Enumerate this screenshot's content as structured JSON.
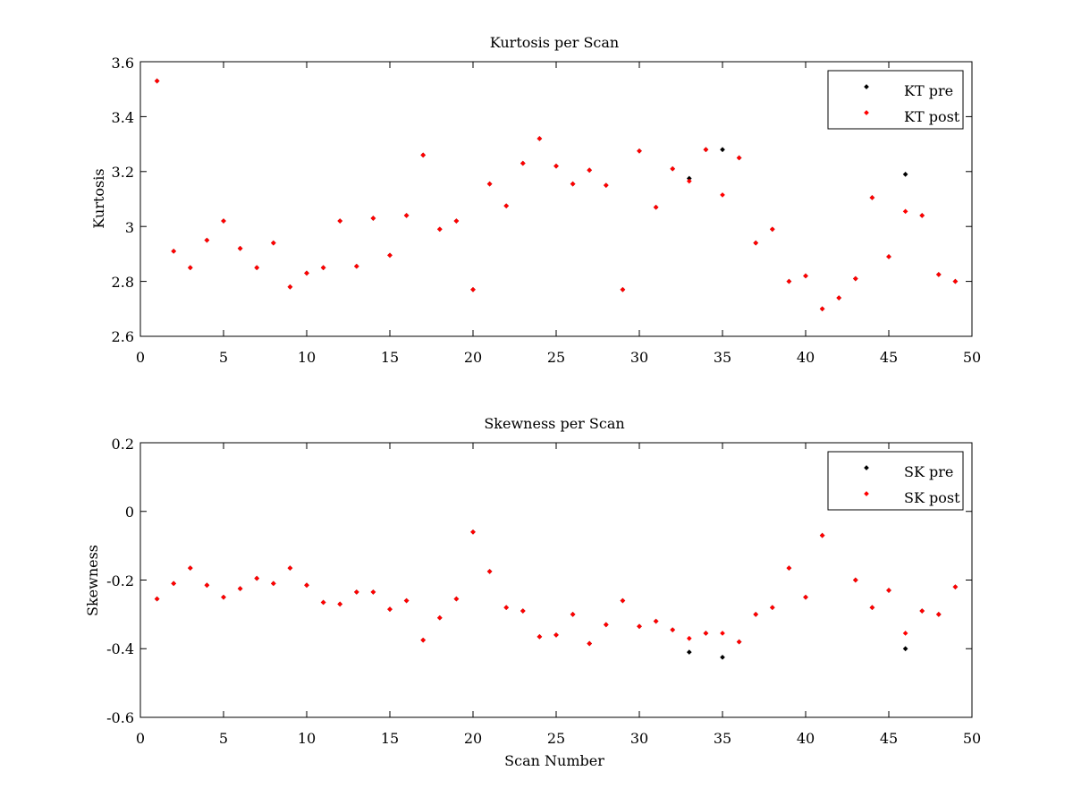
{
  "chart_data": [
    {
      "type": "scatter",
      "title": "Kurtosis per Scan",
      "xlabel": "",
      "ylabel": "Kurtosis",
      "xlim": [
        0,
        50
      ],
      "ylim": [
        2.6,
        3.6
      ],
      "xticks": [
        "0",
        "5",
        "10",
        "15",
        "20",
        "25",
        "30",
        "35",
        "40",
        "45",
        "50"
      ],
      "yticks": [
        "2.6",
        "2.8",
        "3",
        "3.2",
        "3.4",
        "3.6"
      ],
      "legend_position": "top-right",
      "series": [
        {
          "name": "KT pre",
          "color": "#000000",
          "points": [
            [
              1,
              3.53
            ],
            [
              2,
              2.91
            ],
            [
              3,
              2.85
            ],
            [
              4,
              2.95
            ],
            [
              5,
              3.02
            ],
            [
              6,
              2.92
            ],
            [
              7,
              2.85
            ],
            [
              8,
              2.94
            ],
            [
              9,
              2.78
            ],
            [
              10,
              2.83
            ],
            [
              11,
              2.85
            ],
            [
              12,
              3.02
            ],
            [
              13,
              2.855
            ],
            [
              14,
              3.03
            ],
            [
              15,
              2.895
            ],
            [
              16,
              3.04
            ],
            [
              17,
              3.26
            ],
            [
              18,
              2.99
            ],
            [
              19,
              3.02
            ],
            [
              20,
              2.77
            ],
            [
              21,
              3.155
            ],
            [
              22,
              3.075
            ],
            [
              23,
              3.23
            ],
            [
              24,
              3.32
            ],
            [
              25,
              3.22
            ],
            [
              26,
              3.155
            ],
            [
              27,
              3.205
            ],
            [
              28,
              3.15
            ],
            [
              29,
              2.77
            ],
            [
              30,
              3.275
            ],
            [
              31,
              3.07
            ],
            [
              32,
              3.21
            ],
            [
              33,
              3.175
            ],
            [
              34,
              3.28
            ],
            [
              35,
              3.28
            ],
            [
              36,
              3.25
            ],
            [
              37,
              2.94
            ],
            [
              38,
              2.99
            ],
            [
              39,
              2.8
            ],
            [
              40,
              2.82
            ],
            [
              41,
              2.7
            ],
            [
              42,
              2.74
            ],
            [
              43,
              2.81
            ],
            [
              44,
              3.105
            ],
            [
              45,
              2.89
            ],
            [
              46,
              3.19
            ],
            [
              47,
              3.04
            ],
            [
              48,
              2.825
            ],
            [
              49,
              2.8
            ]
          ]
        },
        {
          "name": "KT post",
          "color": "#ff0000",
          "points": [
            [
              1,
              3.53
            ],
            [
              2,
              2.91
            ],
            [
              3,
              2.85
            ],
            [
              4,
              2.95
            ],
            [
              5,
              3.02
            ],
            [
              6,
              2.92
            ],
            [
              7,
              2.85
            ],
            [
              8,
              2.94
            ],
            [
              9,
              2.78
            ],
            [
              10,
              2.83
            ],
            [
              11,
              2.85
            ],
            [
              12,
              3.02
            ],
            [
              13,
              2.855
            ],
            [
              14,
              3.03
            ],
            [
              15,
              2.895
            ],
            [
              16,
              3.04
            ],
            [
              17,
              3.26
            ],
            [
              18,
              2.99
            ],
            [
              19,
              3.02
            ],
            [
              20,
              2.77
            ],
            [
              21,
              3.155
            ],
            [
              22,
              3.075
            ],
            [
              23,
              3.23
            ],
            [
              24,
              3.32
            ],
            [
              25,
              3.22
            ],
            [
              26,
              3.155
            ],
            [
              27,
              3.205
            ],
            [
              28,
              3.15
            ],
            [
              29,
              2.77
            ],
            [
              30,
              3.275
            ],
            [
              31,
              3.07
            ],
            [
              32,
              3.21
            ],
            [
              33,
              3.165
            ],
            [
              34,
              3.28
            ],
            [
              35,
              3.115
            ],
            [
              36,
              3.25
            ],
            [
              37,
              2.94
            ],
            [
              38,
              2.99
            ],
            [
              39,
              2.8
            ],
            [
              40,
              2.82
            ],
            [
              41,
              2.7
            ],
            [
              42,
              2.74
            ],
            [
              43,
              2.81
            ],
            [
              44,
              3.105
            ],
            [
              45,
              2.89
            ],
            [
              46,
              3.055
            ],
            [
              47,
              3.04
            ],
            [
              48,
              2.825
            ],
            [
              49,
              2.8
            ]
          ]
        }
      ]
    },
    {
      "type": "scatter",
      "title": "Skewness per Scan",
      "xlabel": "Scan Number",
      "ylabel": "Skewness",
      "xlim": [
        0,
        50
      ],
      "ylim": [
        -0.6,
        0.2
      ],
      "xticks": [
        "0",
        "5",
        "10",
        "15",
        "20",
        "25",
        "30",
        "35",
        "40",
        "45",
        "50"
      ],
      "yticks": [
        "-0.6",
        "-0.4",
        "-0.2",
        "0",
        "0.2"
      ],
      "legend_position": "top-right",
      "series": [
        {
          "name": "SK pre",
          "color": "#000000",
          "points": [
            [
              1,
              -0.255
            ],
            [
              2,
              -0.21
            ],
            [
              3,
              -0.165
            ],
            [
              4,
              -0.215
            ],
            [
              5,
              -0.25
            ],
            [
              6,
              -0.225
            ],
            [
              7,
              -0.195
            ],
            [
              8,
              -0.21
            ],
            [
              9,
              -0.165
            ],
            [
              10,
              -0.215
            ],
            [
              11,
              -0.265
            ],
            [
              12,
              -0.27
            ],
            [
              13,
              -0.235
            ],
            [
              14,
              -0.235
            ],
            [
              15,
              -0.285
            ],
            [
              16,
              -0.26
            ],
            [
              17,
              -0.375
            ],
            [
              18,
              -0.31
            ],
            [
              19,
              -0.255
            ],
            [
              20,
              -0.06
            ],
            [
              21,
              -0.175
            ],
            [
              22,
              -0.28
            ],
            [
              23,
              -0.29
            ],
            [
              24,
              -0.365
            ],
            [
              25,
              -0.36
            ],
            [
              26,
              -0.3
            ],
            [
              27,
              -0.385
            ],
            [
              28,
              -0.33
            ],
            [
              29,
              -0.26
            ],
            [
              30,
              -0.335
            ],
            [
              31,
              -0.32
            ],
            [
              32,
              -0.345
            ],
            [
              33,
              -0.41
            ],
            [
              34,
              -0.355
            ],
            [
              35,
              -0.425
            ],
            [
              36,
              -0.38
            ],
            [
              37,
              -0.3
            ],
            [
              38,
              -0.28
            ],
            [
              39,
              -0.165
            ],
            [
              40,
              -0.25
            ],
            [
              41,
              -0.07
            ],
            [
              43,
              -0.2
            ],
            [
              44,
              -0.28
            ],
            [
              45,
              -0.23
            ],
            [
              46,
              -0.4
            ],
            [
              47,
              -0.29
            ],
            [
              48,
              -0.3
            ],
            [
              49,
              -0.22
            ]
          ]
        },
        {
          "name": "SK post",
          "color": "#ff0000",
          "points": [
            [
              1,
              -0.255
            ],
            [
              2,
              -0.21
            ],
            [
              3,
              -0.165
            ],
            [
              4,
              -0.215
            ],
            [
              5,
              -0.25
            ],
            [
              6,
              -0.225
            ],
            [
              7,
              -0.195
            ],
            [
              8,
              -0.21
            ],
            [
              9,
              -0.165
            ],
            [
              10,
              -0.215
            ],
            [
              11,
              -0.265
            ],
            [
              12,
              -0.27
            ],
            [
              13,
              -0.235
            ],
            [
              14,
              -0.235
            ],
            [
              15,
              -0.285
            ],
            [
              16,
              -0.26
            ],
            [
              17,
              -0.375
            ],
            [
              18,
              -0.31
            ],
            [
              19,
              -0.255
            ],
            [
              20,
              -0.06
            ],
            [
              21,
              -0.175
            ],
            [
              22,
              -0.28
            ],
            [
              23,
              -0.29
            ],
            [
              24,
              -0.365
            ],
            [
              25,
              -0.36
            ],
            [
              26,
              -0.3
            ],
            [
              27,
              -0.385
            ],
            [
              28,
              -0.33
            ],
            [
              29,
              -0.26
            ],
            [
              30,
              -0.335
            ],
            [
              31,
              -0.32
            ],
            [
              32,
              -0.345
            ],
            [
              33,
              -0.37
            ],
            [
              34,
              -0.355
            ],
            [
              35,
              -0.355
            ],
            [
              36,
              -0.38
            ],
            [
              37,
              -0.3
            ],
            [
              38,
              -0.28
            ],
            [
              39,
              -0.165
            ],
            [
              40,
              -0.25
            ],
            [
              41,
              -0.07
            ],
            [
              43,
              -0.2
            ],
            [
              44,
              -0.28
            ],
            [
              45,
              -0.23
            ],
            [
              46,
              -0.355
            ],
            [
              47,
              -0.29
            ],
            [
              48,
              -0.3
            ],
            [
              49,
              -0.22
            ]
          ]
        }
      ]
    }
  ]
}
